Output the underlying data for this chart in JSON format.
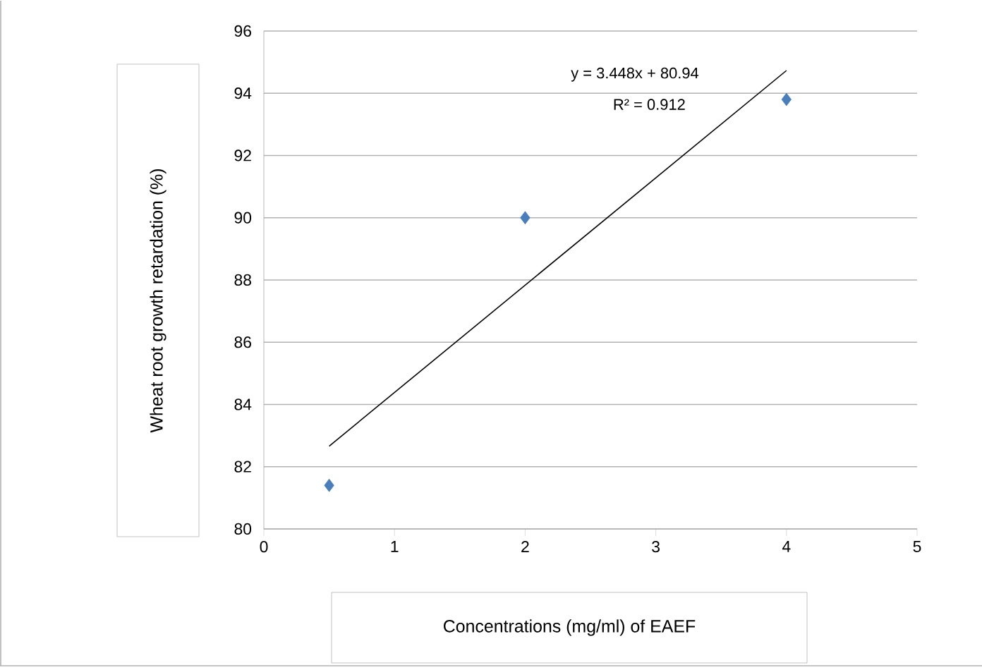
{
  "chart_data": {
    "type": "scatter",
    "xlabel": "Concentrations (mg/ml) of EAEF",
    "ylabel": "Wheat root growth retardation (%)",
    "series": [
      {
        "color": "#4a7ebb",
        "x": [
          0.5,
          2,
          4
        ],
        "values": [
          81.4,
          90,
          93.8
        ]
      },
      {
        "type": "line",
        "color": "#000000",
        "marker": "none",
        "x": [
          0.5,
          4
        ],
        "values": [
          82.66,
          94.73
        ]
      }
    ],
    "annotations": [
      "y = 3.448x + 80.94",
      "R² = 0.912"
    ],
    "xlim": [
      0,
      5
    ],
    "xticks": [
      0,
      1,
      2,
      3,
      4,
      5
    ],
    "ylim": [
      80,
      96
    ],
    "yticks": [
      80,
      82,
      84,
      86,
      88,
      90,
      92,
      94,
      96
    ],
    "grid": "y",
    "marker": "diamond"
  }
}
